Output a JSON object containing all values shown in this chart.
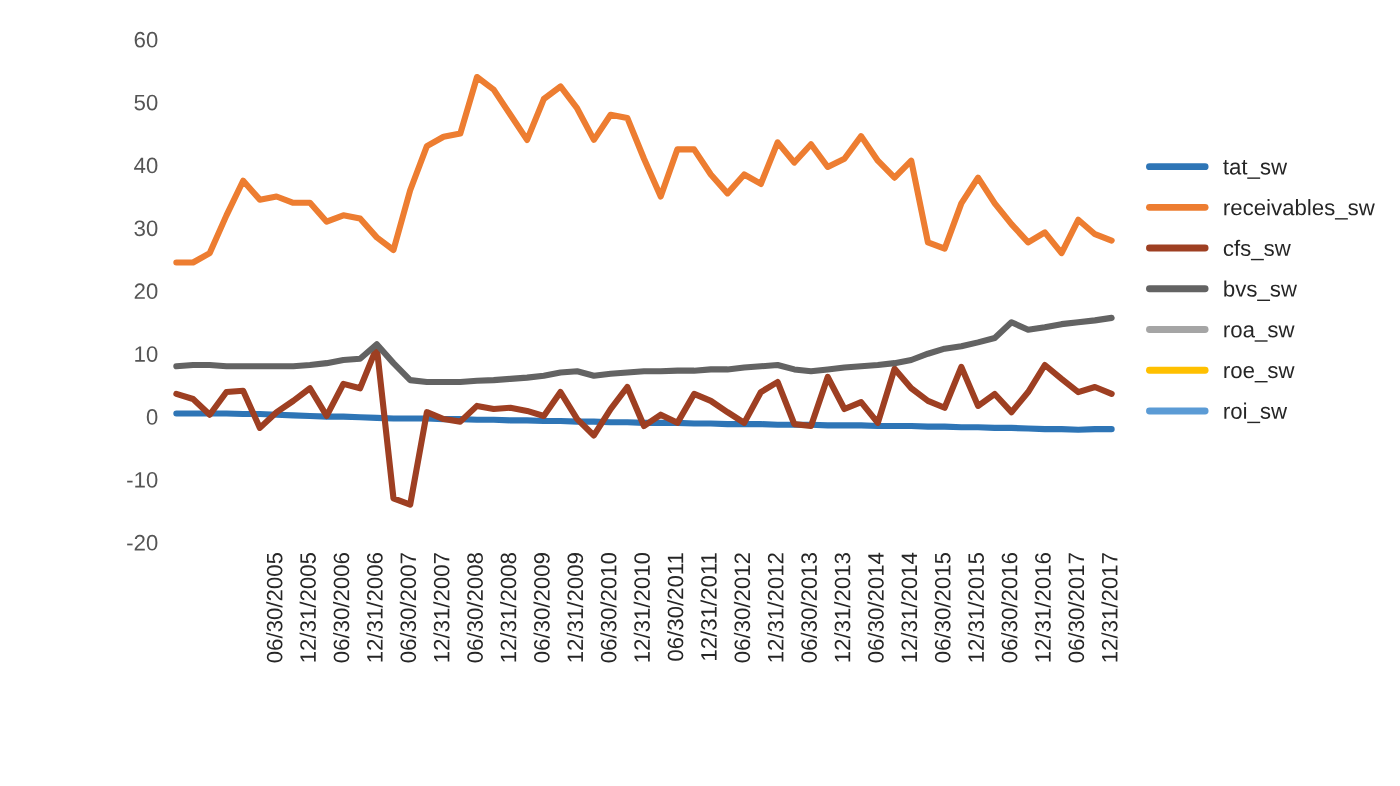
{
  "chart_data": {
    "type": "line",
    "categories": [
      null,
      null,
      null,
      null,
      null,
      null,
      "06/30/2005",
      null,
      "12/31/2005",
      null,
      "06/30/2006",
      null,
      "12/31/2006",
      null,
      "06/30/2007",
      null,
      "12/31/2007",
      null,
      "06/30/2008",
      null,
      "12/31/2008",
      null,
      "06/30/2009",
      null,
      "12/31/2009",
      null,
      "06/30/2010",
      null,
      "12/31/2010",
      null,
      "06/30/2011",
      null,
      "12/31/2011",
      null,
      "06/30/2012",
      null,
      "12/31/2012",
      null,
      "06/30/2013",
      null,
      "12/31/2013",
      null,
      "06/30/2014",
      null,
      "12/31/2014",
      null,
      "06/30/2015",
      null,
      "12/31/2015",
      null,
      "06/30/2016",
      null,
      "12/31/2016",
      null,
      "06/30/2017",
      null,
      "12/31/2017"
    ],
    "series": [
      {
        "name": "tat_sw",
        "color": "#2e75b6",
        "values": [
          0.5,
          0.5,
          0.5,
          0.5,
          0.4,
          0.4,
          0.3,
          0.2,
          0.1,
          0,
          0,
          -0.1,
          -0.2,
          -0.3,
          -0.3,
          -0.3,
          -0.4,
          -0.4,
          -0.5,
          -0.5,
          -0.6,
          -0.6,
          -0.7,
          -0.7,
          -0.8,
          -0.8,
          -0.9,
          -0.9,
          -1,
          -1,
          -1,
          -1.1,
          -1.1,
          -1.2,
          -1.2,
          -1.2,
          -1.3,
          -1.3,
          -1.3,
          -1.4,
          -1.4,
          -1.4,
          -1.5,
          -1.5,
          -1.5,
          -1.6,
          -1.6,
          -1.7,
          -1.7,
          -1.8,
          -1.8,
          -1.9,
          -2,
          -2,
          -2.1,
          -2,
          -2
        ]
      },
      {
        "name": "receivables_sw",
        "color": "#ed7d31",
        "values": [
          24.5,
          24.5,
          26,
          32,
          37.5,
          34.5,
          35,
          34,
          34,
          31,
          32,
          31.5,
          28.5,
          26.5,
          36,
          43,
          44.5,
          45,
          54,
          52,
          48,
          44,
          50.5,
          52.5,
          49,
          44,
          48,
          47.5,
          41,
          35,
          42.5,
          42.5,
          38.5,
          35.5,
          38.5,
          37,
          43.6,
          40.4,
          43.3,
          39.7,
          41,
          44.6,
          40.7,
          38,
          40.7,
          27.7,
          26.7,
          33.9,
          38,
          33.9,
          30.6,
          27.7,
          29.3,
          26,
          31.3,
          29,
          28
        ]
      },
      {
        "name": "cfs_sw",
        "color": "#9e3f22",
        "values": [
          3.6,
          2.8,
          0.3,
          3.9,
          4.1,
          -1.8,
          0.7,
          2.5,
          4.5,
          0.1,
          5.2,
          4.5,
          11,
          -13,
          -14,
          0.7,
          -0.4,
          -0.8,
          1.7,
          1.2,
          1.4,
          0.9,
          0.1,
          3.9,
          -0.4,
          -3,
          1.2,
          4.7,
          -1.5,
          0.3,
          -1,
          3.6,
          2.5,
          0.7,
          -1,
          3.9,
          5.5,
          -1.2,
          -1.5,
          6.3,
          1.2,
          2.3,
          -1,
          7.6,
          4.5,
          2.5,
          1.4,
          7.9,
          1.7,
          3.6,
          0.7,
          3.9,
          8.2,
          6,
          3.9,
          4.7,
          3.6
        ]
      },
      {
        "name": "bvs_sw",
        "color": "#636363",
        "values": [
          8,
          8.2,
          8.2,
          8,
          8,
          8,
          8,
          8,
          8.2,
          8.5,
          9,
          9.2,
          11.5,
          8.5,
          5.8,
          5.5,
          5.5,
          5.5,
          5.7,
          5.8,
          6,
          6.2,
          6.5,
          7,
          7.2,
          6.5,
          6.8,
          7,
          7.2,
          7.2,
          7.3,
          7.3,
          7.5,
          7.5,
          7.8,
          8,
          8.2,
          7.5,
          7.2,
          7.5,
          7.8,
          8,
          8.2,
          8.5,
          9,
          10,
          10.8,
          11.2,
          11.8,
          12.5,
          15,
          13.8,
          14.2,
          14.7,
          15,
          15.3,
          15.7
        ]
      },
      {
        "name": "roa_sw",
        "color": "#a5a5a5",
        "values": [
          null,
          null,
          null,
          null,
          null,
          null,
          null,
          null,
          null,
          null,
          null,
          null,
          null,
          null,
          null,
          null,
          null,
          null,
          null,
          null,
          null,
          null,
          null,
          null,
          null,
          null,
          null,
          null,
          null,
          null,
          null,
          null,
          null,
          null,
          null,
          null,
          null,
          null,
          null,
          null,
          null,
          null,
          null,
          null,
          null,
          null,
          null,
          null,
          null,
          null,
          null,
          null,
          null,
          null,
          null,
          null,
          null
        ]
      },
      {
        "name": "roe_sw",
        "color": "#ffc000",
        "values": [
          null,
          null,
          null,
          null,
          null,
          null,
          null,
          null,
          null,
          null,
          null,
          null,
          null,
          null,
          null,
          null,
          null,
          null,
          null,
          null,
          null,
          null,
          null,
          null,
          null,
          null,
          null,
          null,
          null,
          null,
          null,
          null,
          null,
          null,
          null,
          null,
          null,
          null,
          null,
          null,
          null,
          null,
          null,
          null,
          null,
          null,
          null,
          null,
          null,
          null,
          null,
          null,
          null,
          null,
          null,
          null,
          null
        ]
      },
      {
        "name": "roi_sw",
        "color": "#5b9bd5",
        "values": [
          null,
          null,
          null,
          null,
          null,
          null,
          null,
          null,
          null,
          null,
          null,
          null,
          null,
          null,
          null,
          null,
          null,
          null,
          null,
          null,
          null,
          null,
          null,
          null,
          null,
          null,
          null,
          null,
          null,
          null,
          null,
          null,
          null,
          null,
          null,
          null,
          null,
          null,
          null,
          null,
          null,
          null,
          null,
          null,
          null,
          null,
          null,
          null,
          null,
          null,
          null,
          null,
          null,
          null,
          null,
          null,
          null
        ]
      }
    ],
    "ylim": [
      -20,
      60
    ],
    "yticks": [
      -20,
      -10,
      0,
      10,
      20,
      30,
      40,
      50,
      60
    ],
    "legend": "right",
    "grid": false,
    "marker": "none",
    "line_style": "solid"
  }
}
